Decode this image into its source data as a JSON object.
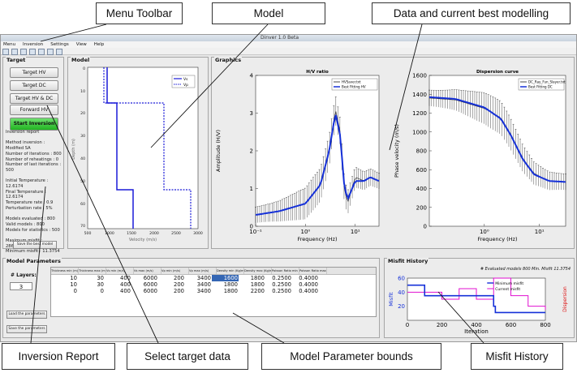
{
  "window": {
    "title": "Dinver 1.0 Beta"
  },
  "menubar": {
    "items": [
      "Menu",
      "Inversion",
      "Settings",
      "View",
      "Help"
    ]
  },
  "toolbar": {
    "icons": [
      "open-icon",
      "save-icon",
      "pointer-icon",
      "zoom-icon",
      "pan-icon",
      "grid-icon",
      "print-icon"
    ]
  },
  "target": {
    "title": "Target",
    "buttons": [
      "Target HV",
      "Target DC",
      "Target HV & DC",
      "Forward HV"
    ],
    "start_label": "Start Inversion",
    "report_lines": [
      "Inversion report",
      "",
      "Method inversion : Modified SA",
      "Number of iterations : 800",
      "Number of reheatings : 0",
      "Number of last iterations : 500",
      "",
      "Initial Temperature : 12.6174",
      "Final Temperature : 12.6174",
      "Temperature rate : 0.9",
      "Perturbation rate : 5%",
      "",
      "Models evaluated : 800",
      "Valid models : 800",
      "Models for statistics : 500",
      "",
      "Maximum misfit : 2868.3207",
      "Minimum misfit : 11.3754",
      "",
      "Total time : 52.874 s"
    ],
    "save_label": "Save the best model"
  },
  "model": {
    "title": "Model",
    "xlabel": "Velocity (m/s)",
    "ylabel": "Depth (m)",
    "legend": [
      "Vs",
      "Vp"
    ]
  },
  "graphics": {
    "title": "Graphics"
  },
  "params": {
    "title": "Model Parameters",
    "layers_label": "# Layers:",
    "layers_value": "3",
    "load_label": "Load the parameters",
    "save_label": "Save the parameters",
    "columns": [
      "Thickness min (m)",
      "Thickness max (m)",
      "Vs min (m/s)",
      "Vs max (m/s)",
      "Vp min (m/s)",
      "Vp max (m/s)",
      "Density min (Kg/m^3)",
      "Density max (Kg/m^3)",
      "Poisson Ratio min",
      "Poisson Ratio max"
    ],
    "rows": [
      [
        "10",
        "30",
        "400",
        "6000",
        "200",
        "3400",
        "1600",
        "1800",
        "0.2500",
        "0.4000"
      ],
      [
        "10",
        "30",
        "400",
        "6000",
        "200",
        "3400",
        "1800",
        "1800",
        "0.2500",
        "0.4000"
      ],
      [
        "0",
        "0",
        "400",
        "6000",
        "200",
        "3400",
        "1800",
        "2200",
        "0.2500",
        "0.4000"
      ]
    ]
  },
  "misfit": {
    "title": "Misfit History",
    "note": "# Evaluated models 800 Min. Misfit 11.3754",
    "xlabel": "Iteration",
    "ylabel": "Misfit",
    "y2label": "Dispersion",
    "legend": [
      "Minimum misfit",
      "Current misfit"
    ]
  },
  "callouts": {
    "menu_toolbar": "Menu Toolbar",
    "model": "Model",
    "data_best": "Data and current best modelling",
    "inversion_report": "Inversion Report",
    "select_target": "Select target data",
    "param_bounds": "Model Parameter bounds",
    "misfit_history": "Misfit History"
  },
  "chart_data": [
    {
      "type": "line",
      "title": "H/V ratio",
      "xlabel": "Frequency (Hz)",
      "ylabel": "Amplitude (H/V)",
      "xscale": "log",
      "xlim": [
        0.1,
        30
      ],
      "ylim": [
        0,
        4
      ],
      "legend": "top-right",
      "series": [
        {
          "name": "HVSaver.txt",
          "style": "error-bars",
          "x": [
            0.1,
            0.3,
            1,
            2,
            3,
            4,
            5,
            6,
            7,
            10,
            15,
            20,
            30
          ],
          "values": [
            0.3,
            0.4,
            0.6,
            1.1,
            2.0,
            3.1,
            2.5,
            1.0,
            0.6,
            1.3,
            1.2,
            1.3,
            1.2
          ]
        },
        {
          "name": "Best Fitting HV",
          "x": [
            0.1,
            0.3,
            1,
            2,
            3,
            4,
            5,
            6,
            7,
            10,
            15,
            20,
            30
          ],
          "values": [
            0.3,
            0.4,
            0.6,
            1.1,
            2.0,
            3.0,
            2.4,
            1.1,
            0.7,
            1.2,
            1.2,
            1.3,
            1.2
          ]
        }
      ]
    },
    {
      "type": "line",
      "title": "Dispersion curve",
      "xlabel": "Frequency (Hz)",
      "ylabel": "Phase velocity (m/s)",
      "xscale": "log",
      "xlim": [
        0.1,
        30
      ],
      "ylim": [
        0,
        1600
      ],
      "legend": "top-right",
      "series": [
        {
          "name": "DC_Ray_Fun_Slayer.txt",
          "style": "error-bars",
          "x": [
            0.1,
            0.3,
            1,
            2,
            3,
            5,
            8,
            15,
            30
          ],
          "values": [
            1360,
            1340,
            1250,
            1150,
            980,
            720,
            560,
            480,
            470
          ]
        },
        {
          "name": "Best Fitting DC",
          "x": [
            0.1,
            0.3,
            1,
            2,
            3,
            5,
            8,
            15,
            30
          ],
          "values": [
            1370,
            1350,
            1260,
            1140,
            970,
            710,
            550,
            480,
            470
          ]
        }
      ]
    },
    {
      "type": "line",
      "title": "Misfit History",
      "xlabel": "Iteration",
      "ylabel": "Misfit",
      "xlim": [
        0,
        800
      ],
      "ylim": [
        0,
        60
      ],
      "series": [
        {
          "name": "Minimum misfit",
          "x": [
            0,
            100,
            200,
            500,
            510,
            800
          ],
          "values": [
            50,
            35,
            35,
            20,
            11,
            11
          ]
        },
        {
          "name": "Current misfit",
          "x": [
            0,
            200,
            300,
            400,
            500,
            600,
            700,
            800
          ],
          "values": [
            40,
            30,
            45,
            30,
            60,
            35,
            20,
            15
          ]
        }
      ]
    }
  ]
}
